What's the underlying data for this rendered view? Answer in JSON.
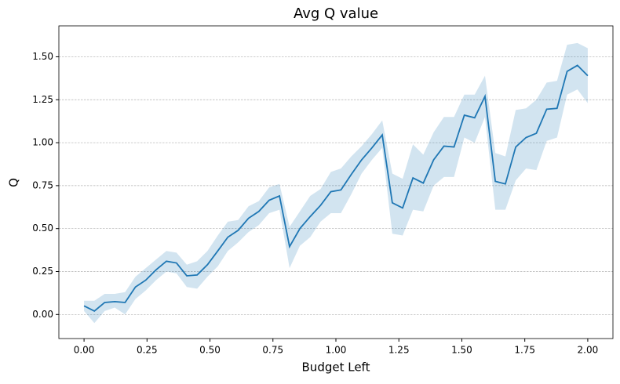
{
  "chart_data": {
    "type": "line",
    "title": "Avg Q value",
    "x_label": "Budget Left",
    "y_label": "Q",
    "x": [
      0,
      0.041,
      0.082,
      0.122,
      0.163,
      0.204,
      0.245,
      0.286,
      0.327,
      0.367,
      0.408,
      0.449,
      0.49,
      0.531,
      0.571,
      0.612,
      0.653,
      0.694,
      0.735,
      0.776,
      0.816,
      0.857,
      0.898,
      0.939,
      0.98,
      1.02,
      1.061,
      1.102,
      1.143,
      1.184,
      1.224,
      1.265,
      1.306,
      1.347,
      1.388,
      1.429,
      1.469,
      1.51,
      1.551,
      1.592,
      1.633,
      1.673,
      1.714,
      1.755,
      1.796,
      1.837,
      1.878,
      1.918,
      1.959,
      2.0
    ],
    "series": [
      {
        "color": "#1f77b4",
        "values": [
          0.05,
          0.02,
          0.07,
          0.075,
          0.07,
          0.16,
          0.2,
          0.26,
          0.31,
          0.3,
          0.225,
          0.23,
          0.29,
          0.37,
          0.45,
          0.49,
          0.56,
          0.6,
          0.665,
          0.69,
          0.395,
          0.5,
          0.57,
          0.635,
          0.715,
          0.725,
          0.815,
          0.9,
          0.97,
          1.045,
          0.65,
          0.62,
          0.795,
          0.765,
          0.9,
          0.98,
          0.975,
          1.16,
          1.145,
          1.27,
          0.775,
          0.76,
          0.975,
          1.03,
          1.055,
          1.195,
          1.2,
          1.415,
          1.45,
          1.39
        ],
        "lower": [
          0.02,
          -0.05,
          0.02,
          0.04,
          0.0,
          0.09,
          0.14,
          0.2,
          0.25,
          0.24,
          0.16,
          0.15,
          0.22,
          0.28,
          0.37,
          0.42,
          0.48,
          0.52,
          0.59,
          0.61,
          0.27,
          0.4,
          0.45,
          0.54,
          0.59,
          0.59,
          0.7,
          0.82,
          0.9,
          0.97,
          0.47,
          0.46,
          0.61,
          0.6,
          0.75,
          0.8,
          0.8,
          1.03,
          1.0,
          1.15,
          0.61,
          0.61,
          0.78,
          0.85,
          0.84,
          1.01,
          1.03,
          1.28,
          1.31,
          1.23
        ],
        "upper": [
          0.08,
          0.08,
          0.12,
          0.12,
          0.13,
          0.22,
          0.27,
          0.32,
          0.37,
          0.36,
          0.29,
          0.31,
          0.37,
          0.46,
          0.54,
          0.55,
          0.63,
          0.66,
          0.74,
          0.76,
          0.51,
          0.6,
          0.69,
          0.73,
          0.83,
          0.85,
          0.92,
          0.98,
          1.05,
          1.13,
          0.82,
          0.79,
          0.99,
          0.93,
          1.06,
          1.15,
          1.15,
          1.28,
          1.28,
          1.39,
          0.94,
          0.92,
          1.19,
          1.2,
          1.25,
          1.35,
          1.36,
          1.57,
          1.58,
          1.55
        ]
      }
    ],
    "xlim": [
      -0.1,
      2.1
    ],
    "ylim": [
      -0.14,
      1.68
    ],
    "xticks": [
      {
        "value": 0,
        "label": "0.00"
      },
      {
        "value": 0.25,
        "label": "0.25"
      },
      {
        "value": 0.5,
        "label": "0.50"
      },
      {
        "value": 0.75,
        "label": "0.75"
      },
      {
        "value": 1,
        "label": "1.00"
      },
      {
        "value": 1.25,
        "label": "1.25"
      },
      {
        "value": 1.5,
        "label": "1.50"
      },
      {
        "value": 1.75,
        "label": "1.75"
      },
      {
        "value": 2,
        "label": "2.00"
      }
    ],
    "yticks": [
      {
        "value": 0,
        "label": "0.00"
      },
      {
        "value": 0.25,
        "label": "0.25"
      },
      {
        "value": 0.5,
        "label": "0.50"
      },
      {
        "value": 0.75,
        "label": "0.75"
      },
      {
        "value": 1,
        "label": "1.00"
      },
      {
        "value": 1.25,
        "label": "1.25"
      },
      {
        "value": 1.5,
        "label": "1.50"
      }
    ],
    "grid": true
  }
}
